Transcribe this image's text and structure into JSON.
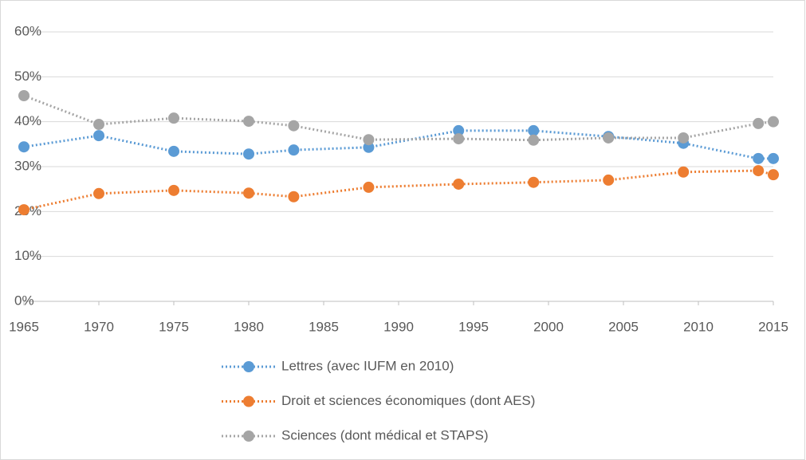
{
  "chart_data": {
    "type": "line",
    "x": [
      1965,
      1970,
      1975,
      1980,
      1983,
      1988,
      1994,
      1999,
      2004,
      2009,
      2014,
      2015
    ],
    "series": [
      {
        "name": "Lettres (avec IUFM en 2010)",
        "color": "#5b9bd5",
        "values": [
          34.4,
          36.9,
          33.4,
          32.8,
          33.7,
          34.3,
          38.0,
          38.0,
          36.7,
          35.2,
          31.8,
          31.8
        ]
      },
      {
        "name": "Droit et sciences économiques (dont AES)",
        "color": "#ed7d31",
        "values": [
          20.4,
          24.0,
          24.7,
          24.1,
          23.3,
          25.4,
          26.1,
          26.5,
          27.0,
          28.8,
          29.1,
          28.2
        ]
      },
      {
        "name": "Sciences (dont médical et STAPS)",
        "color": "#a5a5a5",
        "values": [
          45.8,
          39.4,
          40.8,
          40.1,
          39.1,
          36.0,
          36.2,
          35.9,
          36.4,
          36.4,
          39.6,
          40.0
        ]
      }
    ],
    "xlim": [
      1965,
      2015
    ],
    "xticks": [
      1965,
      1970,
      1975,
      1980,
      1985,
      1990,
      1995,
      2000,
      2005,
      2010,
      2015
    ],
    "ylim": [
      0,
      60
    ],
    "yticks": [
      {
        "value": 0,
        "label": "0%"
      },
      {
        "value": 10,
        "label": "10%"
      },
      {
        "value": 20,
        "label": "20%"
      },
      {
        "value": 30,
        "label": "30%"
      },
      {
        "value": 40,
        "label": "40%"
      },
      {
        "value": 50,
        "label": "50%"
      },
      {
        "value": 60,
        "label": "60%"
      }
    ],
    "grid": true,
    "legend": "bottom"
  }
}
